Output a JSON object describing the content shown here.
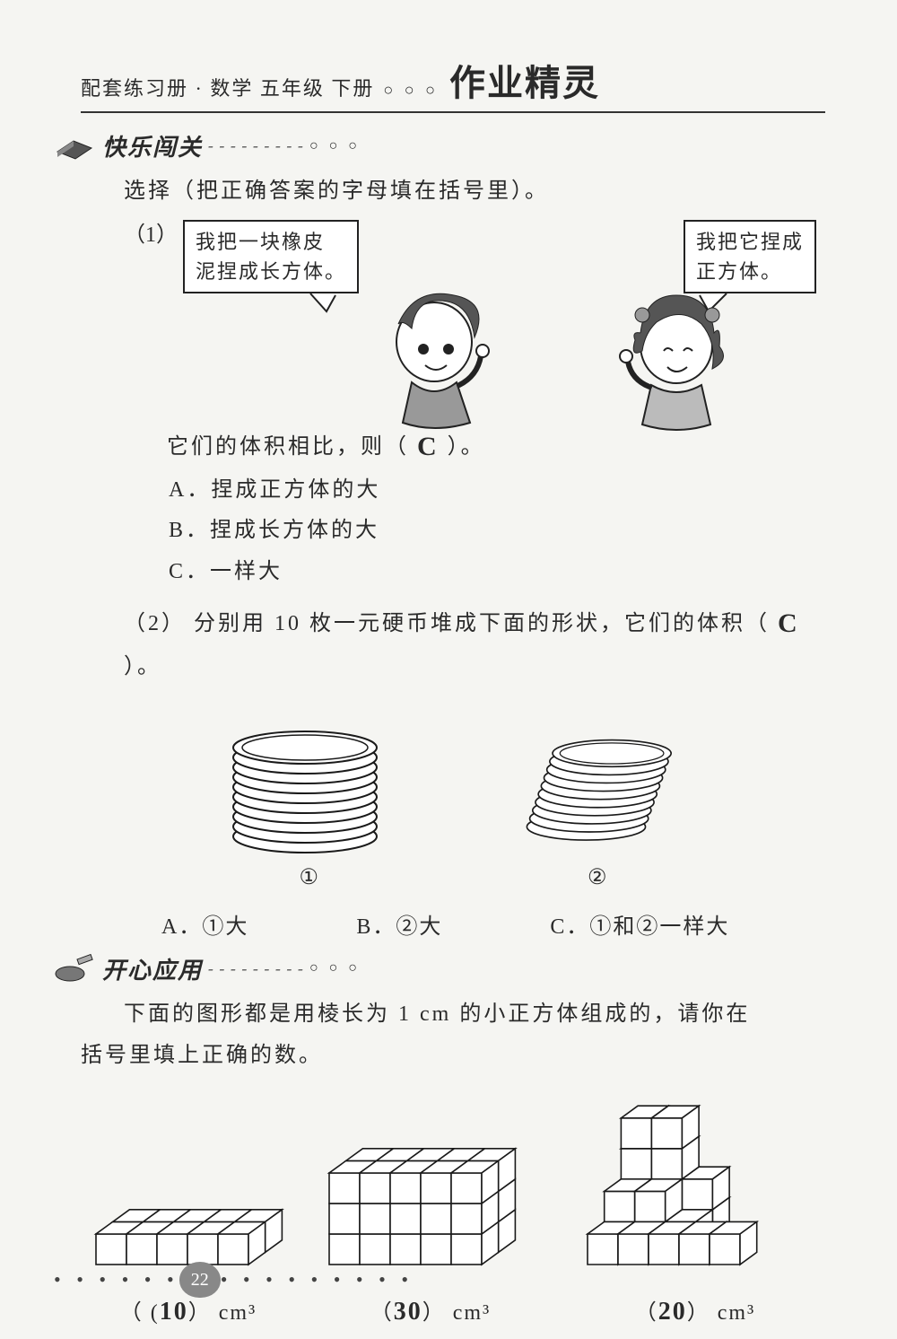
{
  "header": {
    "text": "配套练习册 · 数学  五年级  下册",
    "circles": "○ ○ ○",
    "handwriting": "作业精灵"
  },
  "section1": {
    "title": "快乐闯关",
    "dashes": "- - - - - - - - -",
    "dots": "○ ○ ○",
    "instruction": "选择（把正确答案的字母填在括号里）。",
    "q1": {
      "num": "（1）",
      "bubble_left_l1": "我把一块橡皮",
      "bubble_left_l2": "泥捏成长方体。",
      "bubble_right_l1": "我把它捏成",
      "bubble_right_l2": "正方体。",
      "compare_prefix": "它们的体积相比，则（",
      "compare_suffix": "）。",
      "answer": "C",
      "optA": "A．捏成正方体的大",
      "optB": "B．捏成长方体的大",
      "optC": "C．一样大"
    },
    "q2": {
      "num": "（2）",
      "text_prefix": "分别用 10 枚一元硬币堆成下面的形状，它们的体积（",
      "text_suffix": "）。",
      "answer": "C",
      "label1": "①",
      "label2": "②",
      "choiceA": "A．①大",
      "choiceB": "B．②大",
      "choiceC": "C．①和②一样大",
      "coin": {
        "count": 10,
        "ellipse_rx": 80,
        "ellipse_ry": 18,
        "spacing": 11,
        "stroke": "#1a1a1a",
        "fill": "#ffffff",
        "shear2": 0.35
      }
    }
  },
  "section2": {
    "title": "开心应用",
    "dashes": "- - - - - - - - -",
    "dots": "○ ○ ○",
    "intro_l1": "下面的图形都是用棱长为 1 cm 的小正方体组成的，请你在",
    "intro_l2": "括号里填上正确的数。",
    "fig1": {
      "answer": "10",
      "unit": "cm³",
      "cols": 5,
      "rows": 1,
      "layers": 2
    },
    "fig2": {
      "answer": "30",
      "unit": "cm³",
      "cols": 5,
      "rows": 2,
      "layers": 3
    },
    "fig3": {
      "answer": "20",
      "unit": "cm³"
    }
  },
  "footer": {
    "page": "22"
  },
  "colors": {
    "ink": "#1a1a1a",
    "paper": "#f5f5f2"
  }
}
